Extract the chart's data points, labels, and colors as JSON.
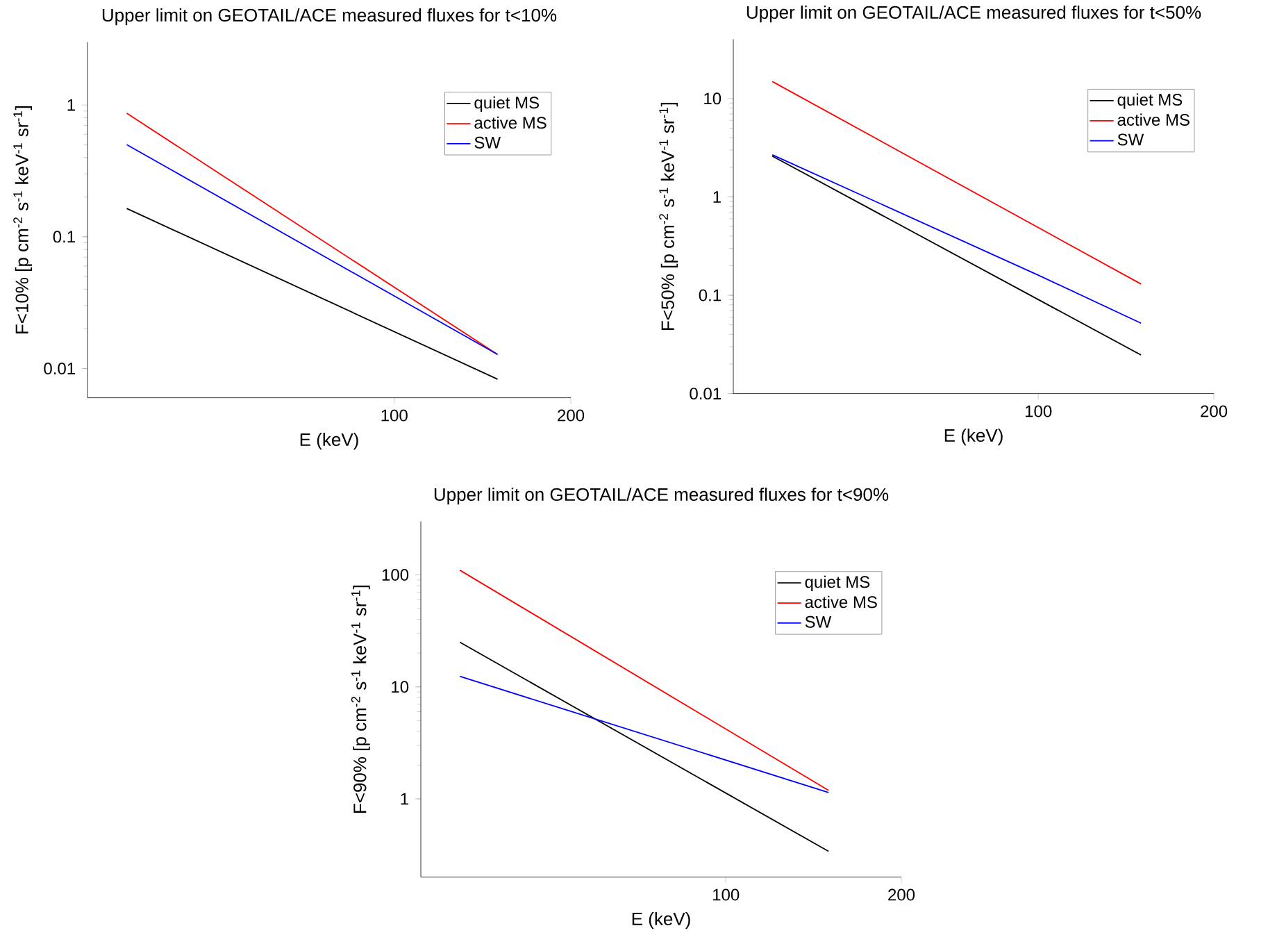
{
  "chart_data": [
    {
      "type": "line",
      "title": "Upper limit on GEOTAIL/ACE measured fluxes for t<10%",
      "xlabel": "E (keV)",
      "ylabel": "F<10%  [p cm$^{-2}$ s$^{-1}$ keV$^{-1}$ sr$^{-1}$]",
      "log": "xy",
      "xlim": [
        30,
        200
      ],
      "xticks": [
        100,
        200
      ],
      "ylim": [
        0.006,
        3
      ],
      "yticks": [
        0.01,
        0.1,
        1
      ],
      "legend": "top right",
      "grid": false,
      "series": [
        {
          "name": "quiet MS",
          "color": "#000000",
          "x": [
            35,
            150
          ],
          "values": [
            0.164,
            0.0083
          ]
        },
        {
          "name": "active MS",
          "color": "#ff0000",
          "x": [
            35,
            150
          ],
          "values": [
            0.865,
            0.0128
          ]
        },
        {
          "name": "SW",
          "color": "#0000ff",
          "x": [
            35,
            150
          ],
          "values": [
            0.5,
            0.0128
          ]
        }
      ]
    },
    {
      "type": "line",
      "title": "Upper limit on GEOTAIL/ACE measured fluxes for t<50%",
      "xlabel": "E (keV)",
      "ylabel": "F<50%  [p cm$^{-2}$ s$^{-1}$ keV$^{-1}$ sr$^{-1}$]",
      "log": "xy",
      "xlim": [
        30,
        200
      ],
      "xticks": [
        100,
        200
      ],
      "ylim": [
        0.01,
        40
      ],
      "yticks": [
        0.01,
        0.1,
        1,
        10
      ],
      "legend": "top right",
      "grid": false,
      "series": [
        {
          "name": "quiet MS",
          "color": "#000000",
          "x": [
            35,
            150
          ],
          "values": [
            2.6,
            0.0247
          ]
        },
        {
          "name": "active MS",
          "color": "#ff0000",
          "x": [
            35,
            150
          ],
          "values": [
            14.9,
            0.13
          ]
        },
        {
          "name": "SW",
          "color": "#0000ff",
          "x": [
            35,
            100,
            150
          ],
          "values": [
            2.68,
            0.16,
            0.052
          ]
        }
      ]
    },
    {
      "type": "line",
      "title": "Upper limit on GEOTAIL/ACE measured fluxes for t<90%",
      "xlabel": "E (keV)",
      "ylabel": "F<90%  [p cm$^{-2}$ s$^{-1}$ keV$^{-1}$ sr$^{-1}$]",
      "log": "xy",
      "xlim": [
        30,
        200
      ],
      "xticks": [
        100,
        200
      ],
      "ylim": [
        0.2,
        300
      ],
      "yticks": [
        1,
        10,
        100
      ],
      "legend": "top right",
      "grid": false,
      "series": [
        {
          "name": "quiet MS",
          "color": "#000000",
          "x": [
            35,
            150
          ],
          "values": [
            25,
            0.34
          ]
        },
        {
          "name": "active MS",
          "color": "#ff0000",
          "x": [
            35,
            150
          ],
          "values": [
            110,
            1.19
          ]
        },
        {
          "name": "SW",
          "color": "#0000ff",
          "x": [
            35,
            150
          ],
          "values": [
            12.4,
            1.14
          ]
        }
      ]
    }
  ]
}
